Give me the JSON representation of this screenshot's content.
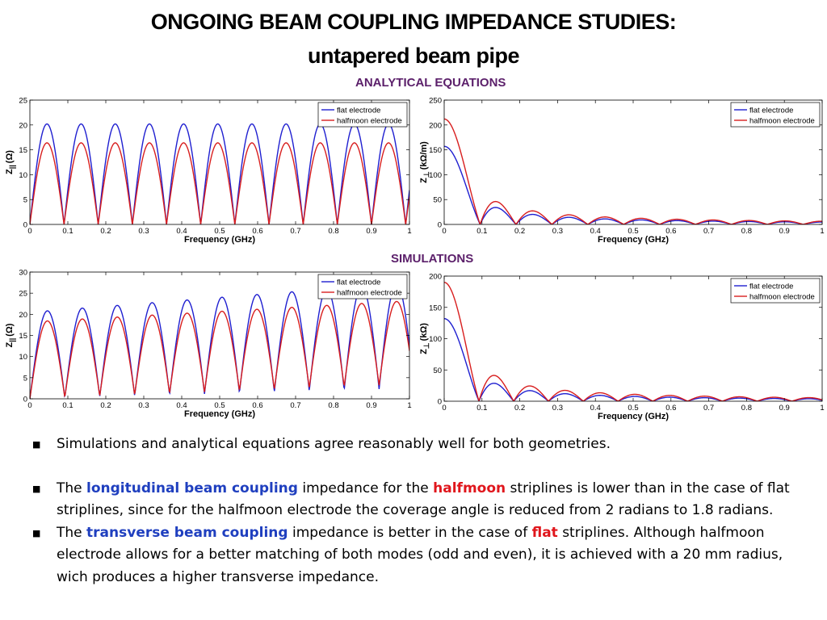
{
  "header": {
    "title_line1": "ONGOING BEAM  COUPLING IMPEDANCE STUDIES:",
    "title_line2": "untapered beam pipe"
  },
  "sections": {
    "analytical": "ANALYTICAL EQUATIONS",
    "simulations": "SIMULATIONS"
  },
  "colors": {
    "flat": "#1f1fd0",
    "halfmoon": "#d81e1e",
    "section_label": "#5b1f6a"
  },
  "chart_data": [
    {
      "id": "analytical-longitudinal",
      "type": "line",
      "xlabel": "Frequency (GHz)",
      "ylabel_main": "Z",
      "ylabel_sub": "||",
      "ylabel_unit": "(Ω)",
      "xlim": [
        0,
        1
      ],
      "ylim": [
        0,
        25
      ],
      "xticks": [
        0,
        0.1,
        0.2,
        0.3,
        0.4,
        0.5,
        0.6,
        0.7,
        0.8,
        0.9,
        1
      ],
      "xtick_labels": [
        "0",
        "0.1",
        "0.2",
        "0.3",
        "0.4",
        "0.5",
        "0.6",
        "0.7",
        "0.8",
        "0.9",
        "1"
      ],
      "yticks": [
        0,
        5,
        10,
        15,
        20,
        25
      ],
      "ytick_labels": [
        "0",
        "5",
        "10",
        "15",
        "20",
        "25"
      ],
      "legend_position": "top-right",
      "series": [
        {
          "name": "flat electrode",
          "color": "#1f1fd0",
          "pattern": "sin_abs",
          "period": 0.09,
          "amp": 20.2,
          "growth": 0,
          "floor": 0
        },
        {
          "name": "halfmoon electrode",
          "color": "#d81e1e",
          "pattern": "sin_abs",
          "period": 0.09,
          "amp": 16.4,
          "growth": 0,
          "floor": 0
        }
      ]
    },
    {
      "id": "analytical-transverse",
      "type": "line",
      "xlabel": "Frequency (GHz)",
      "ylabel_main": "Z",
      "ylabel_sub": "⊥",
      "ylabel_unit": "(kΩ/m)",
      "xlim": [
        0,
        1
      ],
      "ylim": [
        0,
        250
      ],
      "xticks": [
        0,
        0.1,
        0.2,
        0.3,
        0.4,
        0.5,
        0.6,
        0.7,
        0.8,
        0.9,
        1
      ],
      "xtick_labels": [
        "0",
        "0.1",
        "0.2",
        "0.3",
        "0.4",
        "0.5",
        "0.6",
        "0.7",
        "0.8",
        "0.9",
        "1"
      ],
      "yticks": [
        0,
        50,
        100,
        150,
        200,
        250
      ],
      "ytick_labels": [
        "0",
        "50",
        "100",
        "150",
        "200",
        "250"
      ],
      "legend_position": "top-right",
      "series": [
        {
          "name": "flat electrode",
          "color": "#1f1fd0",
          "pattern": "sinc_abs",
          "zero": 0.095,
          "amp": 157
        },
        {
          "name": "halfmoon electrode",
          "color": "#d81e1e",
          "pattern": "sinc_abs",
          "zero": 0.095,
          "amp": 212
        }
      ]
    },
    {
      "id": "simulation-longitudinal",
      "type": "line",
      "xlabel": "Frequency (GHz)",
      "ylabel_main": "Z",
      "ylabel_sub": "||",
      "ylabel_unit": "(Ω)",
      "xlim": [
        0,
        1
      ],
      "ylim": [
        0,
        30
      ],
      "xticks": [
        0,
        0.1,
        0.2,
        0.3,
        0.4,
        0.5,
        0.6,
        0.7,
        0.8,
        0.9,
        1
      ],
      "xtick_labels": [
        "0",
        "0.1",
        "0.2",
        "0.3",
        "0.4",
        "0.5",
        "0.6",
        "0.7",
        "0.8",
        "0.9",
        "1"
      ],
      "yticks": [
        0,
        5,
        10,
        15,
        20,
        25,
        30
      ],
      "ytick_labels": [
        "0",
        "5",
        "10",
        "15",
        "20",
        "25",
        "30"
      ],
      "legend_position": "top-right",
      "series": [
        {
          "name": "flat electrode",
          "color": "#1f1fd0",
          "pattern": "sin_abs",
          "period": 0.092,
          "amp": 20.5,
          "growth": 7,
          "floor": 2.5
        },
        {
          "name": "halfmoon electrode",
          "color": "#d81e1e",
          "pattern": "sin_abs",
          "period": 0.092,
          "amp": 18.2,
          "growth": 5,
          "floor": 3.5
        }
      ]
    },
    {
      "id": "simulation-transverse",
      "type": "line",
      "xlabel": "Frequency (GHz)",
      "ylabel_main": "Z",
      "ylabel_sub": "⊥",
      "ylabel_unit": "(kΩ)",
      "xlim": [
        0,
        1
      ],
      "ylim": [
        0,
        200
      ],
      "xticks": [
        0,
        0.1,
        0.2,
        0.3,
        0.4,
        0.5,
        0.6,
        0.7,
        0.8,
        0.9,
        1
      ],
      "xtick_labels": [
        "0",
        "0.1",
        "0.2",
        "0.3",
        "0.4",
        "0.5",
        "0.6",
        "0.7",
        "0.8",
        "0.9",
        "1"
      ],
      "yticks": [
        0,
        50,
        100,
        150,
        200
      ],
      "ytick_labels": [
        "0",
        "50",
        "100",
        "150",
        "200"
      ],
      "legend_position": "top-right",
      "series": [
        {
          "name": "flat electrode",
          "color": "#1f1fd0",
          "pattern": "sinc_abs",
          "zero": 0.092,
          "amp": 132
        },
        {
          "name": "halfmoon electrode",
          "color": "#d81e1e",
          "pattern": "sinc_abs",
          "zero": 0.092,
          "amp": 190
        }
      ]
    }
  ],
  "bullets": {
    "b1": "Simulations and analytical equations agree reasonably well for both geometries.",
    "b2_p1": "The ",
    "b2_hl1": "longitudinal beam coupling",
    "b2_p2": " impedance for the ",
    "b2_hl2": "halfmoon",
    "b2_p3": " striplines is lower than in the case of flat striplines, since for the halfmoon electrode the coverage angle is reduced from 2 radians to 1.8 radians.",
    "b3_p1": "The ",
    "b3_hl1": "transverse beam coupling",
    "b3_p2": " impedance is better in the case of ",
    "b3_hl2": "flat",
    "b3_p3": " striplines. Although halfmoon electrode allows for a better matching of both modes (odd and even), it is achieved with a 20 mm radius, wich produces a higher transverse impedance."
  }
}
